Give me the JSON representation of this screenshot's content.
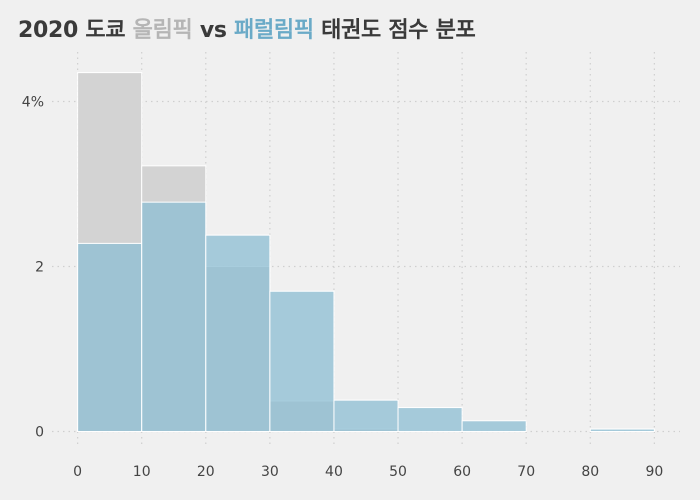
{
  "title": {
    "part1": "2020 도쿄 ",
    "part2": "올림픽",
    "part3": " vs ",
    "part4": "패럴림픽",
    "part5": " 태권도 점수 분포"
  },
  "colors": {
    "background": "#f0f0f0",
    "olympic_bar": "#d3d3d3",
    "paralympic_bar": "#8fbfd3",
    "title_text": "#3a3a3a",
    "olympic_title": "#b5b5b5",
    "paralympic_title": "#6aaac7",
    "grid": "#cccccc"
  },
  "chart_data": {
    "type": "histogram",
    "title": "2020 도쿄 올림픽 vs 패럴림픽 태권도 점수 분포",
    "xlabel": "",
    "ylabel": "",
    "xlim": [
      -4,
      94
    ],
    "ylim": [
      -0.2,
      4.6
    ],
    "bin_edges": [
      0,
      10,
      20,
      30,
      40,
      50,
      60,
      70,
      80,
      90
    ],
    "x_ticks": [
      0,
      10,
      20,
      30,
      40,
      50,
      60,
      70,
      80,
      90
    ],
    "y_ticks": [
      0,
      2,
      4
    ],
    "y_tick_labels": [
      "0",
      "2",
      "4%"
    ],
    "grid": true,
    "series": [
      {
        "name": "올림픽",
        "color": "#d3d3d3",
        "values": [
          4.35,
          3.22,
          2.0,
          0.37,
          0.03,
          0,
          0,
          0,
          0
        ]
      },
      {
        "name": "패럴림픽",
        "color": "#8fbfd3",
        "values": [
          2.28,
          2.78,
          2.38,
          1.7,
          0.38,
          0.29,
          0.13,
          0,
          0.03
        ]
      }
    ]
  }
}
